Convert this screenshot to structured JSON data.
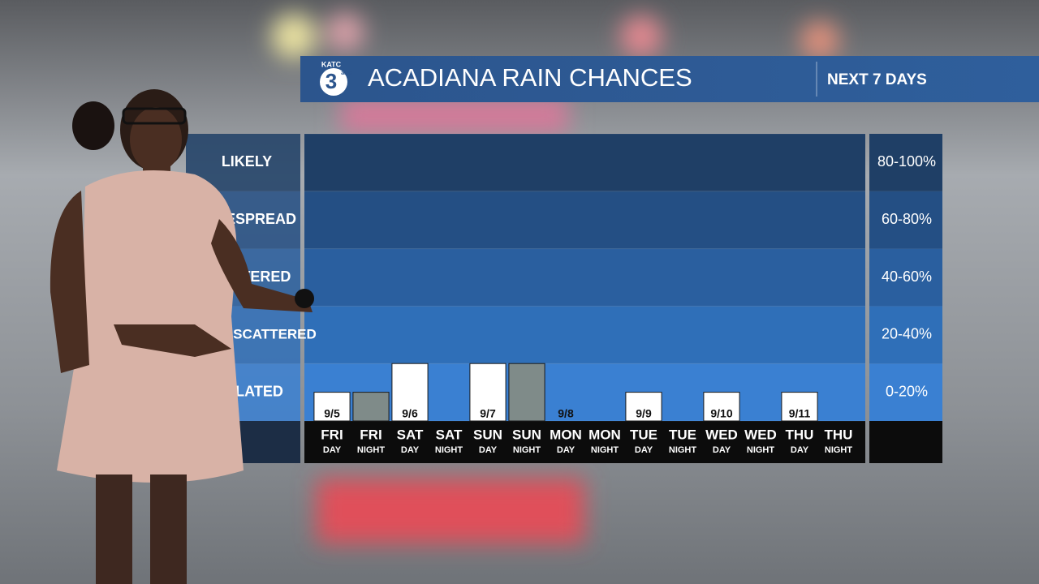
{
  "chart_data": {
    "type": "bar",
    "title": "ACADIANA RAIN CHANCES",
    "subtitle": "NEXT 7 DAYS",
    "logo": {
      "call": "KATC",
      "channel": "3",
      "network": "abc"
    },
    "categories": [
      "FRI",
      "FRI",
      "SAT",
      "SAT",
      "SUN",
      "SUN",
      "MON",
      "MON",
      "TUE",
      "TUE",
      "WED",
      "WED",
      "THU",
      "THU"
    ],
    "periods": [
      "DAY",
      "NIGHT",
      "DAY",
      "NIGHT",
      "DAY",
      "NIGHT",
      "DAY",
      "NIGHT",
      "DAY",
      "NIGHT",
      "DAY",
      "NIGHT",
      "DAY",
      "NIGHT"
    ],
    "dates": [
      "9/5",
      null,
      "9/6",
      null,
      "9/7",
      null,
      "9/8",
      null,
      "9/9",
      null,
      "9/10",
      null,
      "9/11",
      null
    ],
    "values": [
      10,
      10,
      20,
      0,
      20,
      20,
      0,
      0,
      10,
      0,
      10,
      0,
      10,
      0
    ],
    "colors": [
      "#ffffff",
      "#7f8b89",
      "#ffffff",
      "#7f8b89",
      "#ffffff",
      "#7f8b89",
      "#ffffff",
      "#7f8b89",
      "#ffffff",
      "#7f8b89",
      "#ffffff",
      "#7f8b89",
      "#ffffff",
      "#7f8b89"
    ],
    "ylim": [
      0,
      100
    ],
    "yticks": [
      0,
      20,
      40,
      60,
      80,
      100
    ],
    "bands": [
      {
        "label": "ISOLATED",
        "range": "0-20%"
      },
      {
        "label": "WIDELY SCATTERED",
        "range": "20-40%"
      },
      {
        "label": "SCATTERED",
        "range": "40-60%"
      },
      {
        "label": "WIDESPREAD",
        "range": "60-80%"
      },
      {
        "label": "LIKELY",
        "range": "80-100%"
      }
    ],
    "band_colors": [
      "#3a80d2",
      "#2f6fb8",
      "#2a5f9f",
      "#244f84",
      "#1f3f66"
    ]
  }
}
